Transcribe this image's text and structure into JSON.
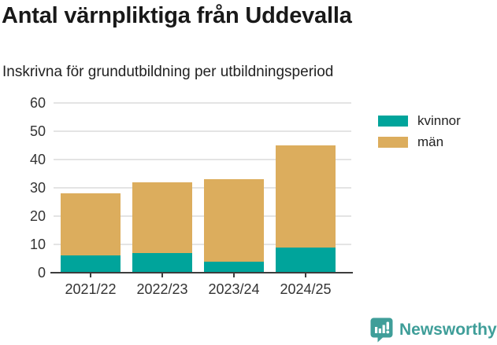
{
  "header": {
    "title": "Antal värnpliktiga från Uddevalla",
    "subtitle": "Inskrivna för grundutbildning per utbildningsperiod"
  },
  "chart_data": {
    "type": "bar",
    "stacked": true,
    "title": "Antal värnpliktiga från Uddevalla",
    "subtitle": "Inskrivna för grundutbildning per utbildningsperiod",
    "categories": [
      "2021/22",
      "2022/23",
      "2023/24",
      "2024/25"
    ],
    "series": [
      {
        "name": "kvinnor",
        "color": "#00a49b",
        "values": [
          6,
          7,
          4,
          9
        ]
      },
      {
        "name": "män",
        "color": "#dcad5d",
        "values": [
          22,
          25,
          29,
          36
        ]
      }
    ],
    "totals": [
      28,
      32,
      33,
      45
    ],
    "xlabel": "",
    "ylabel": "",
    "ylim": [
      0,
      60
    ],
    "yticks": [
      0,
      10,
      20,
      30,
      40,
      50,
      60
    ],
    "grid": true,
    "legend_position": "top-right"
  },
  "legend": {
    "items": [
      {
        "label": "kvinnor",
        "color": "#00a49b"
      },
      {
        "label": "män",
        "color": "#dcad5d"
      }
    ]
  },
  "colors": {
    "kvinnor": "#00a49b",
    "man": "#dcad5d",
    "grid": "#e4e4e4",
    "axis": "#3d3d3d",
    "text": "#333333",
    "brand": "#3f9e99"
  },
  "footer": {
    "brand": "Newsworthy"
  }
}
